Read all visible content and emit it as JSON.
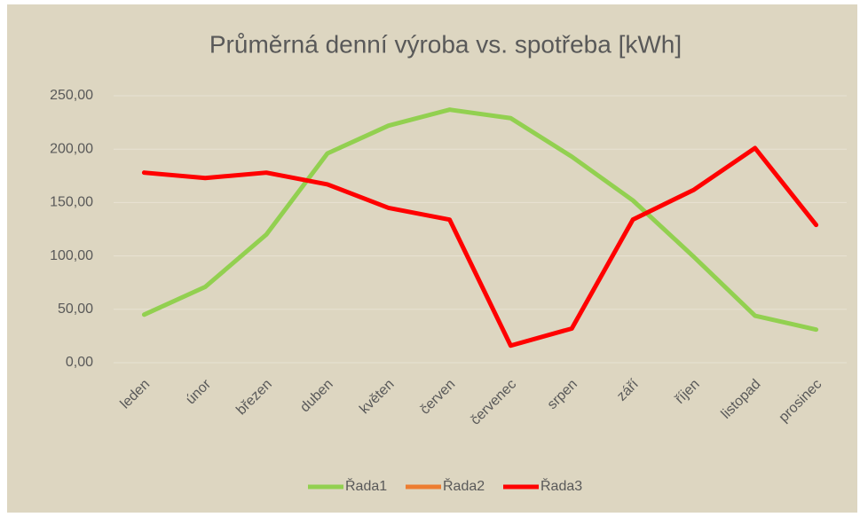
{
  "chart_data": {
    "type": "line",
    "title": "Průměrná denní výroba vs. spotřeba [kWh]",
    "categories": [
      "leden",
      "únor",
      "březen",
      "duben",
      "květen",
      "červen",
      "červenec",
      "srpen",
      "září",
      "říjen",
      "listopad",
      "prosinec"
    ],
    "series": [
      {
        "name": "Řada1",
        "color": "#92d050",
        "values": [
          45,
          71,
          120,
          196,
          222,
          237,
          229,
          193,
          152,
          99,
          44,
          31
        ]
      },
      {
        "name": "Řada2",
        "color": "#ed7d31",
        "values": [
          null,
          null,
          null,
          null,
          null,
          null,
          null,
          null,
          null,
          null,
          null,
          null
        ]
      },
      {
        "name": "Řada3",
        "color": "#ff0000",
        "values": [
          178,
          173,
          178,
          167,
          145,
          134,
          16,
          32,
          134,
          162,
          201,
          129
        ]
      }
    ],
    "ylim": [
      0,
      250
    ],
    "yticks": [
      {
        "value": 0,
        "label": "0,00"
      },
      {
        "value": 50,
        "label": "50,00"
      },
      {
        "value": 100,
        "label": "100,00"
      },
      {
        "value": 150,
        "label": "150,00"
      },
      {
        "value": 200,
        "label": "200,00"
      },
      {
        "value": 250,
        "label": "250,00"
      }
    ],
    "grid": true,
    "legend": "bottom"
  }
}
